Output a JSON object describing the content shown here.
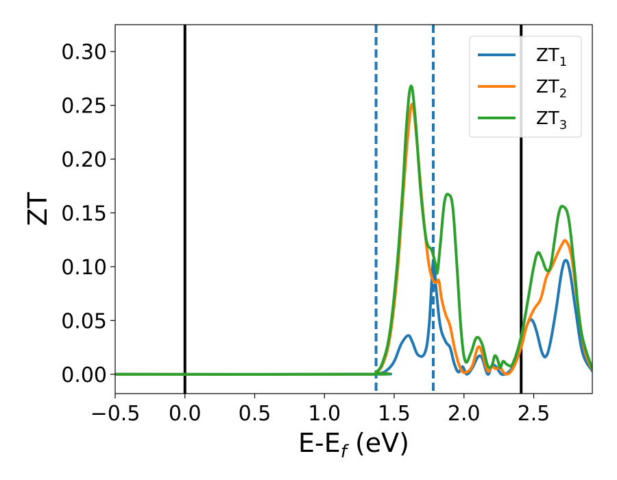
{
  "chart_data": {
    "type": "line",
    "xlabel": {
      "main": "E-E",
      "sub": "f",
      "rest": " (eV)"
    },
    "ylabel": "ZT",
    "xlim": [
      -0.5,
      2.92
    ],
    "ylim": [
      -0.018,
      0.325
    ],
    "x_ticks": [
      {
        "value": -0.5,
        "label": "−0.5"
      },
      {
        "value": 0.0,
        "label": "0.0"
      },
      {
        "value": 0.5,
        "label": "0.5"
      },
      {
        "value": 1.0,
        "label": "1.0"
      },
      {
        "value": 1.5,
        "label": "1.5"
      },
      {
        "value": 2.0,
        "label": "2.0"
      },
      {
        "value": 2.5,
        "label": "2.5"
      }
    ],
    "y_ticks": [
      {
        "value": 0.0,
        "label": "0.00"
      },
      {
        "value": 0.05,
        "label": "0.05"
      },
      {
        "value": 0.1,
        "label": "0.10"
      },
      {
        "value": 0.15,
        "label": "0.15"
      },
      {
        "value": 0.2,
        "label": "0.20"
      },
      {
        "value": 0.25,
        "label": "0.25"
      },
      {
        "value": 0.3,
        "label": "0.30"
      }
    ],
    "grid": false,
    "legend_position": "top-right",
    "vertical_lines": [
      {
        "x": 0.0,
        "color": "#000000",
        "style": "solid"
      },
      {
        "x": 2.41,
        "color": "#000000",
        "style": "solid"
      },
      {
        "x": 1.37,
        "color": "#1f77b4",
        "style": "dashed"
      },
      {
        "x": 1.78,
        "color": "#1f77b4",
        "style": "dashed"
      }
    ],
    "series": [
      {
        "name": "ZT",
        "name_sub": "1",
        "color": "#1f77b4",
        "points": [
          [
            -0.5,
            0
          ],
          [
            1.3,
            0
          ],
          [
            1.4,
            0.001
          ],
          [
            1.45,
            0.004
          ],
          [
            1.5,
            0.012
          ],
          [
            1.55,
            0.028
          ],
          [
            1.6,
            0.036
          ],
          [
            1.63,
            0.03
          ],
          [
            1.67,
            0.018
          ],
          [
            1.72,
            0.02
          ],
          [
            1.75,
            0.045
          ],
          [
            1.78,
            0.105
          ],
          [
            1.8,
            0.08
          ],
          [
            1.83,
            0.045
          ],
          [
            1.87,
            0.03
          ],
          [
            1.9,
            0.025
          ],
          [
            1.93,
            0.01
          ],
          [
            1.96,
            0.002
          ],
          [
            1.99,
            0.007
          ],
          [
            2.02,
            0.0
          ],
          [
            2.06,
            0.006
          ],
          [
            2.1,
            0.016
          ],
          [
            2.13,
            0.015
          ],
          [
            2.17,
            0.0
          ],
          [
            2.2,
            0.008
          ],
          [
            2.23,
            0.007
          ],
          [
            2.27,
            0.0
          ],
          [
            2.32,
            0.002
          ],
          [
            2.36,
            0.01
          ],
          [
            2.41,
            0.03
          ],
          [
            2.46,
            0.048
          ],
          [
            2.49,
            0.05
          ],
          [
            2.52,
            0.04
          ],
          [
            2.56,
            0.02
          ],
          [
            2.59,
            0.017
          ],
          [
            2.62,
            0.03
          ],
          [
            2.66,
            0.06
          ],
          [
            2.7,
            0.095
          ],
          [
            2.73,
            0.106
          ],
          [
            2.76,
            0.095
          ],
          [
            2.8,
            0.06
          ],
          [
            2.85,
            0.02
          ],
          [
            2.92,
            0.003
          ]
        ]
      },
      {
        "name": "ZT",
        "name_sub": "2",
        "color": "#ff7f0e",
        "points": [
          [
            -0.5,
            0
          ],
          [
            1.3,
            0
          ],
          [
            1.37,
            0.002
          ],
          [
            1.42,
            0.01
          ],
          [
            1.47,
            0.035
          ],
          [
            1.52,
            0.09
          ],
          [
            1.56,
            0.16
          ],
          [
            1.6,
            0.225
          ],
          [
            1.63,
            0.251
          ],
          [
            1.66,
            0.22
          ],
          [
            1.7,
            0.16
          ],
          [
            1.74,
            0.11
          ],
          [
            1.77,
            0.09
          ],
          [
            1.8,
            0.085
          ],
          [
            1.82,
            0.087
          ],
          [
            1.84,
            0.07
          ],
          [
            1.87,
            0.055
          ],
          [
            1.9,
            0.045
          ],
          [
            1.94,
            0.02
          ],
          [
            1.98,
            0.004
          ],
          [
            2.02,
            0.002
          ],
          [
            2.06,
            0.008
          ],
          [
            2.1,
            0.025
          ],
          [
            2.13,
            0.02
          ],
          [
            2.17,
            0.003
          ],
          [
            2.2,
            0.007
          ],
          [
            2.23,
            0.005
          ],
          [
            2.26,
            0.006
          ],
          [
            2.3,
            0.0
          ],
          [
            2.35,
            0.005
          ],
          [
            2.41,
            0.025
          ],
          [
            2.45,
            0.045
          ],
          [
            2.5,
            0.06
          ],
          [
            2.55,
            0.07
          ],
          [
            2.59,
            0.09
          ],
          [
            2.63,
            0.1
          ],
          [
            2.67,
            0.112
          ],
          [
            2.7,
            0.12
          ],
          [
            2.73,
            0.124
          ],
          [
            2.77,
            0.11
          ],
          [
            2.81,
            0.07
          ],
          [
            2.86,
            0.025
          ],
          [
            2.92,
            0.004
          ]
        ]
      },
      {
        "name": "ZT",
        "name_sub": "3",
        "color": "#2ca02c",
        "points": [
          [
            -0.5,
            0
          ],
          [
            1.3,
            0
          ],
          [
            1.37,
            0.002
          ],
          [
            1.42,
            0.012
          ],
          [
            1.47,
            0.04
          ],
          [
            1.52,
            0.1
          ],
          [
            1.56,
            0.17
          ],
          [
            1.59,
            0.235
          ],
          [
            1.62,
            0.268
          ],
          [
            1.65,
            0.24
          ],
          [
            1.69,
            0.17
          ],
          [
            1.73,
            0.125
          ],
          [
            1.77,
            0.115
          ],
          [
            1.8,
            0.1
          ],
          [
            1.81,
            0.095
          ],
          [
            1.83,
            0.12
          ],
          [
            1.86,
            0.16
          ],
          [
            1.89,
            0.167
          ],
          [
            1.92,
            0.155
          ],
          [
            1.95,
            0.1
          ],
          [
            1.98,
            0.04
          ],
          [
            2.01,
            0.012
          ],
          [
            2.05,
            0.02
          ],
          [
            2.09,
            0.034
          ],
          [
            2.13,
            0.028
          ],
          [
            2.17,
            0.008
          ],
          [
            2.2,
            0.008
          ],
          [
            2.22,
            0.017
          ],
          [
            2.24,
            0.014
          ],
          [
            2.26,
            0.006
          ],
          [
            2.28,
            0.012
          ],
          [
            2.31,
            0.009
          ],
          [
            2.35,
            0.01
          ],
          [
            2.41,
            0.035
          ],
          [
            2.46,
            0.07
          ],
          [
            2.5,
            0.1
          ],
          [
            2.53,
            0.113
          ],
          [
            2.56,
            0.107
          ],
          [
            2.59,
            0.097
          ],
          [
            2.62,
            0.1
          ],
          [
            2.65,
            0.125
          ],
          [
            2.68,
            0.15
          ],
          [
            2.71,
            0.156
          ],
          [
            2.75,
            0.145
          ],
          [
            2.79,
            0.1
          ],
          [
            2.84,
            0.04
          ],
          [
            2.92,
            0.005
          ]
        ]
      }
    ]
  }
}
